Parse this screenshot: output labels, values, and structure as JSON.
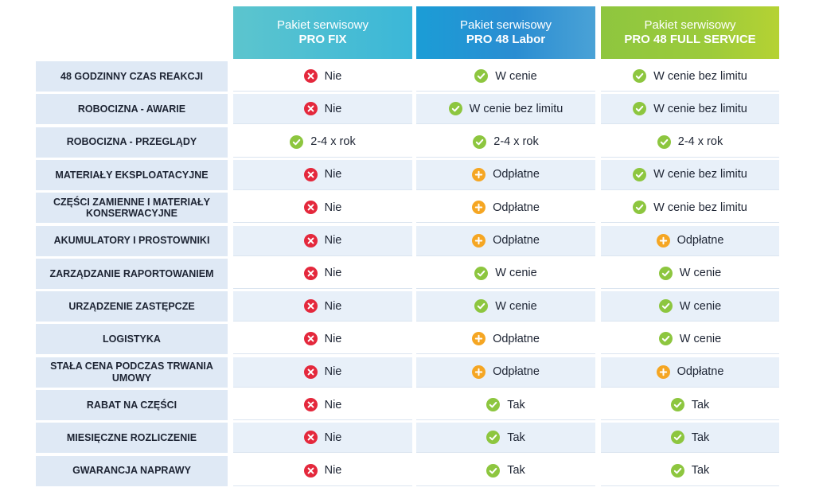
{
  "columns": [
    {
      "line1": "Pakiet serwisowy",
      "line2": "PRO FIX"
    },
    {
      "line1": "Pakiet serwisowy",
      "line2": "PRO 48 Labor"
    },
    {
      "line1": "Pakiet serwisowy",
      "line2": "PRO 48 FULL SERVICE"
    }
  ],
  "icons": {
    "no": {
      "name": "x-circle-icon",
      "color": "#e4283c"
    },
    "yes": {
      "name": "check-circle-icon",
      "color": "#8dc63f"
    },
    "plus": {
      "name": "plus-circle-icon",
      "color": "#f5a623"
    }
  },
  "rows": [
    {
      "label": "48 GODZINNY CZAS REAKCJI",
      "cells": [
        {
          "icon": "no",
          "text": "Nie"
        },
        {
          "icon": "yes",
          "text": "W cenie"
        },
        {
          "icon": "yes",
          "text": "W cenie bez limitu"
        }
      ]
    },
    {
      "label": "ROBOCIZNA - AWARIE",
      "cells": [
        {
          "icon": "no",
          "text": "Nie"
        },
        {
          "icon": "yes",
          "text": "W cenie bez limitu"
        },
        {
          "icon": "yes",
          "text": "W cenie bez limitu"
        }
      ]
    },
    {
      "label": "ROBOCIZNA - PRZEGLĄDY",
      "cells": [
        {
          "icon": "yes",
          "text": "2-4 x rok"
        },
        {
          "icon": "yes",
          "text": "2-4 x rok"
        },
        {
          "icon": "yes",
          "text": "2-4 x rok"
        }
      ]
    },
    {
      "label": "MATERIAŁY EKSPLOATACYJNE",
      "cells": [
        {
          "icon": "no",
          "text": "Nie"
        },
        {
          "icon": "plus",
          "text": "Odpłatne"
        },
        {
          "icon": "yes",
          "text": "W cenie bez limitu"
        }
      ]
    },
    {
      "label": "CZĘŚCI ZAMIENNE I MATERIAŁY KONSERWACYJNE",
      "cells": [
        {
          "icon": "no",
          "text": "Nie"
        },
        {
          "icon": "plus",
          "text": "Odpłatne"
        },
        {
          "icon": "yes",
          "text": "W cenie bez limitu"
        }
      ]
    },
    {
      "label": "AKUMULATORY I PROSTOWNIKI",
      "cells": [
        {
          "icon": "no",
          "text": "Nie"
        },
        {
          "icon": "plus",
          "text": "Odpłatne"
        },
        {
          "icon": "plus",
          "text": "Odpłatne"
        }
      ]
    },
    {
      "label": "ZARZĄDZANIE RAPORTOWANIEM",
      "cells": [
        {
          "icon": "no",
          "text": "Nie"
        },
        {
          "icon": "yes",
          "text": "W cenie"
        },
        {
          "icon": "yes",
          "text": "W cenie"
        }
      ]
    },
    {
      "label": "URZĄDZENIE ZASTĘPCZE",
      "cells": [
        {
          "icon": "no",
          "text": "Nie"
        },
        {
          "icon": "yes",
          "text": "W cenie"
        },
        {
          "icon": "yes",
          "text": "W cenie"
        }
      ]
    },
    {
      "label": "LOGISTYKA",
      "cells": [
        {
          "icon": "no",
          "text": "Nie"
        },
        {
          "icon": "plus",
          "text": "Odpłatne"
        },
        {
          "icon": "yes",
          "text": "W cenie"
        }
      ]
    },
    {
      "label": "STAŁA CENA PODCZAS TRWANIA UMOWY",
      "cells": [
        {
          "icon": "no",
          "text": "Nie"
        },
        {
          "icon": "plus",
          "text": "Odpłatne"
        },
        {
          "icon": "plus",
          "text": "Odpłatne"
        }
      ]
    },
    {
      "label": "RABAT NA CZĘŚCI",
      "cells": [
        {
          "icon": "no",
          "text": "Nie"
        },
        {
          "icon": "yes",
          "text": "Tak"
        },
        {
          "icon": "yes",
          "text": "Tak"
        }
      ]
    },
    {
      "label": "MIESIĘCZNE ROZLICZENIE",
      "cells": [
        {
          "icon": "no",
          "text": "Nie"
        },
        {
          "icon": "yes",
          "text": "Tak"
        },
        {
          "icon": "yes",
          "text": "Tak"
        }
      ]
    },
    {
      "label": "GWARANCJA NAPRAWY",
      "cells": [
        {
          "icon": "no",
          "text": "Nie"
        },
        {
          "icon": "yes",
          "text": "Tak"
        },
        {
          "icon": "yes",
          "text": "Tak"
        }
      ]
    }
  ]
}
